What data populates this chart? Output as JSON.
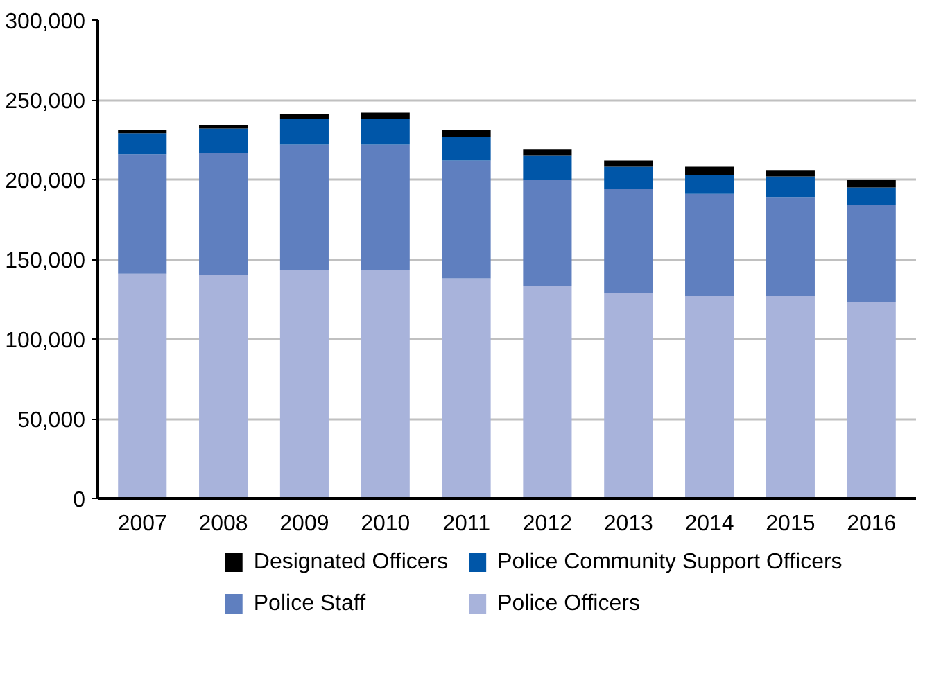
{
  "chart_data": {
    "type": "bar",
    "stacked": true,
    "categories": [
      "2007",
      "2008",
      "2009",
      "2010",
      "2011",
      "2012",
      "2013",
      "2014",
      "2015",
      "2016"
    ],
    "series": [
      {
        "name": "Police Officers",
        "color": "#a8b3db",
        "values": [
          141000,
          140000,
          143000,
          143000,
          138000,
          133000,
          129000,
          127000,
          127000,
          123000
        ]
      },
      {
        "name": "Police Staff",
        "color": "#5f7fbf",
        "values": [
          75000,
          77000,
          79000,
          79000,
          74000,
          67000,
          65000,
          64000,
          62000,
          61000
        ]
      },
      {
        "name": "Police Community Support Officers",
        "color": "#0056a8",
        "values": [
          13000,
          15000,
          16000,
          16000,
          15000,
          15000,
          14000,
          12000,
          13000,
          11000
        ]
      },
      {
        "name": "Designated Officers",
        "color": "#000000",
        "values": [
          2000,
          2000,
          3000,
          4000,
          4000,
          4000,
          4000,
          5000,
          4000,
          5000
        ]
      }
    ],
    "ylim": [
      0,
      300000
    ],
    "yticks": [
      0,
      {
        "value": 50000,
        "label": "50,000"
      },
      {
        "value": 100000,
        "label": "100,000"
      },
      {
        "value": 150000,
        "label": "150,000"
      },
      {
        "value": 200000,
        "label": "200,000"
      },
      {
        "value": 250000,
        "label": "250,000"
      },
      {
        "value": 300000,
        "label": "300,000"
      }
    ],
    "grid": "y",
    "legend": "bottom"
  }
}
